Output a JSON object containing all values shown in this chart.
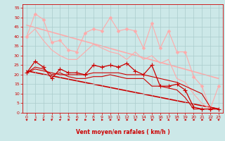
{
  "bg_color": "#cce8e8",
  "grid_color": "#aacccc",
  "xlabel": "Vent moyen/en rafales ( km/h )",
  "xlabel_color": "#cc0000",
  "tick_color": "#cc0000",
  "axis_color": "#cc0000",
  "xlim": [
    -0.5,
    23.5
  ],
  "ylim": [
    0,
    57
  ],
  "yticks": [
    0,
    5,
    10,
    15,
    20,
    25,
    30,
    35,
    40,
    45,
    50,
    55
  ],
  "xticks": [
    0,
    1,
    2,
    3,
    4,
    5,
    6,
    7,
    8,
    9,
    10,
    11,
    12,
    13,
    14,
    15,
    16,
    17,
    18,
    19,
    20,
    21,
    22,
    23
  ],
  "line_gust_max": {
    "x": [
      0,
      1,
      2,
      3,
      4,
      5,
      6,
      7,
      8,
      9,
      10,
      11,
      12,
      13,
      14,
      15,
      16,
      17,
      18,
      19,
      20,
      21,
      22,
      23
    ],
    "y": [
      40,
      52,
      49,
      37,
      38,
      33,
      32,
      42,
      44,
      43,
      50,
      43,
      44,
      43,
      34,
      47,
      34,
      43,
      32,
      32,
      19,
      14,
      2,
      14
    ],
    "color": "#ffaaaa",
    "lw": 0.8,
    "ms": 2.5
  },
  "line_gust_mean": {
    "x": [
      0,
      1,
      2,
      3,
      4,
      5,
      6,
      7,
      8,
      9,
      10,
      11,
      12,
      13,
      14,
      15,
      16,
      17,
      18,
      19,
      20,
      21,
      22,
      23
    ],
    "y": [
      40,
      44,
      38,
      33,
      30,
      28,
      28,
      32,
      36,
      34,
      32,
      31,
      28,
      32,
      28,
      30,
      26,
      28,
      18,
      16,
      10,
      5,
      2,
      2
    ],
    "color": "#ffaaaa",
    "lw": 0.8
  },
  "line_wind_max": {
    "x": [
      0,
      1,
      2,
      3,
      4,
      5,
      6,
      7,
      8,
      9,
      10,
      11,
      12,
      13,
      14,
      15,
      16,
      17,
      18,
      19,
      20,
      21,
      22,
      23
    ],
    "y": [
      21,
      27,
      24,
      18,
      23,
      21,
      21,
      20,
      25,
      24,
      25,
      24,
      26,
      22,
      20,
      25,
      14,
      14,
      15,
      12,
      3,
      2,
      2,
      2
    ],
    "color": "#cc0000",
    "lw": 0.9,
    "ms": 4
  },
  "line_wind_mean": {
    "x": [
      0,
      1,
      2,
      3,
      4,
      5,
      6,
      7,
      8,
      9,
      10,
      11,
      12,
      13,
      14,
      15,
      16,
      17,
      18,
      19,
      20,
      21,
      22,
      23
    ],
    "y": [
      21,
      23,
      22,
      21,
      20,
      20,
      20,
      20,
      21,
      21,
      21,
      21,
      20,
      20,
      20,
      19,
      18,
      17,
      16,
      14,
      12,
      10,
      3,
      2
    ],
    "color": "#cc0000",
    "lw": 0.8
  },
  "line_wind_min": {
    "x": [
      0,
      1,
      2,
      3,
      4,
      5,
      6,
      7,
      8,
      9,
      10,
      11,
      12,
      13,
      14,
      15,
      16,
      17,
      18,
      19,
      20,
      21,
      22,
      23
    ],
    "y": [
      21,
      24,
      23,
      20,
      21,
      19,
      18,
      18,
      19,
      19,
      20,
      19,
      18,
      18,
      18,
      14,
      14,
      13,
      12,
      8,
      2,
      2,
      2,
      2
    ],
    "color": "#cc0000",
    "lw": 0.8
  },
  "line_trend_gust": {
    "x": [
      0,
      23
    ],
    "y": [
      46,
      18
    ],
    "color": "#ffaaaa",
    "lw": 1.2
  },
  "line_trend_wind": {
    "x": [
      0,
      23
    ],
    "y": [
      22,
      2
    ],
    "color": "#cc0000",
    "lw": 1.2
  },
  "wind_directions": [
    7,
    4,
    4,
    7,
    7,
    4,
    7,
    4,
    4,
    4,
    4,
    4,
    4,
    4,
    4,
    4,
    4,
    6,
    4,
    4,
    4,
    4,
    4,
    7
  ]
}
